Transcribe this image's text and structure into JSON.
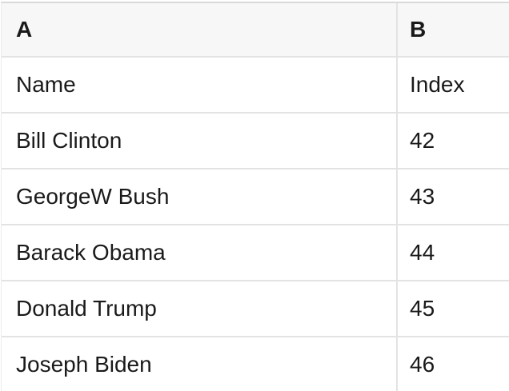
{
  "sheet": {
    "column_headers": [
      "A",
      "B"
    ],
    "rows": [
      [
        "Name",
        "Index"
      ],
      [
        "Bill Clinton",
        "42"
      ],
      [
        "GeorgeW Bush",
        "43"
      ],
      [
        "Barack Obama",
        "44"
      ],
      [
        "Donald Trump",
        "45"
      ],
      [
        "Joseph Biden",
        "46"
      ]
    ]
  },
  "colors": {
    "header_background": "#f7f7f7",
    "row_background": "#ffffff",
    "grid_line": "#e3e3e3",
    "top_border": "#d9d9d9",
    "text": "#1a1a1a"
  }
}
